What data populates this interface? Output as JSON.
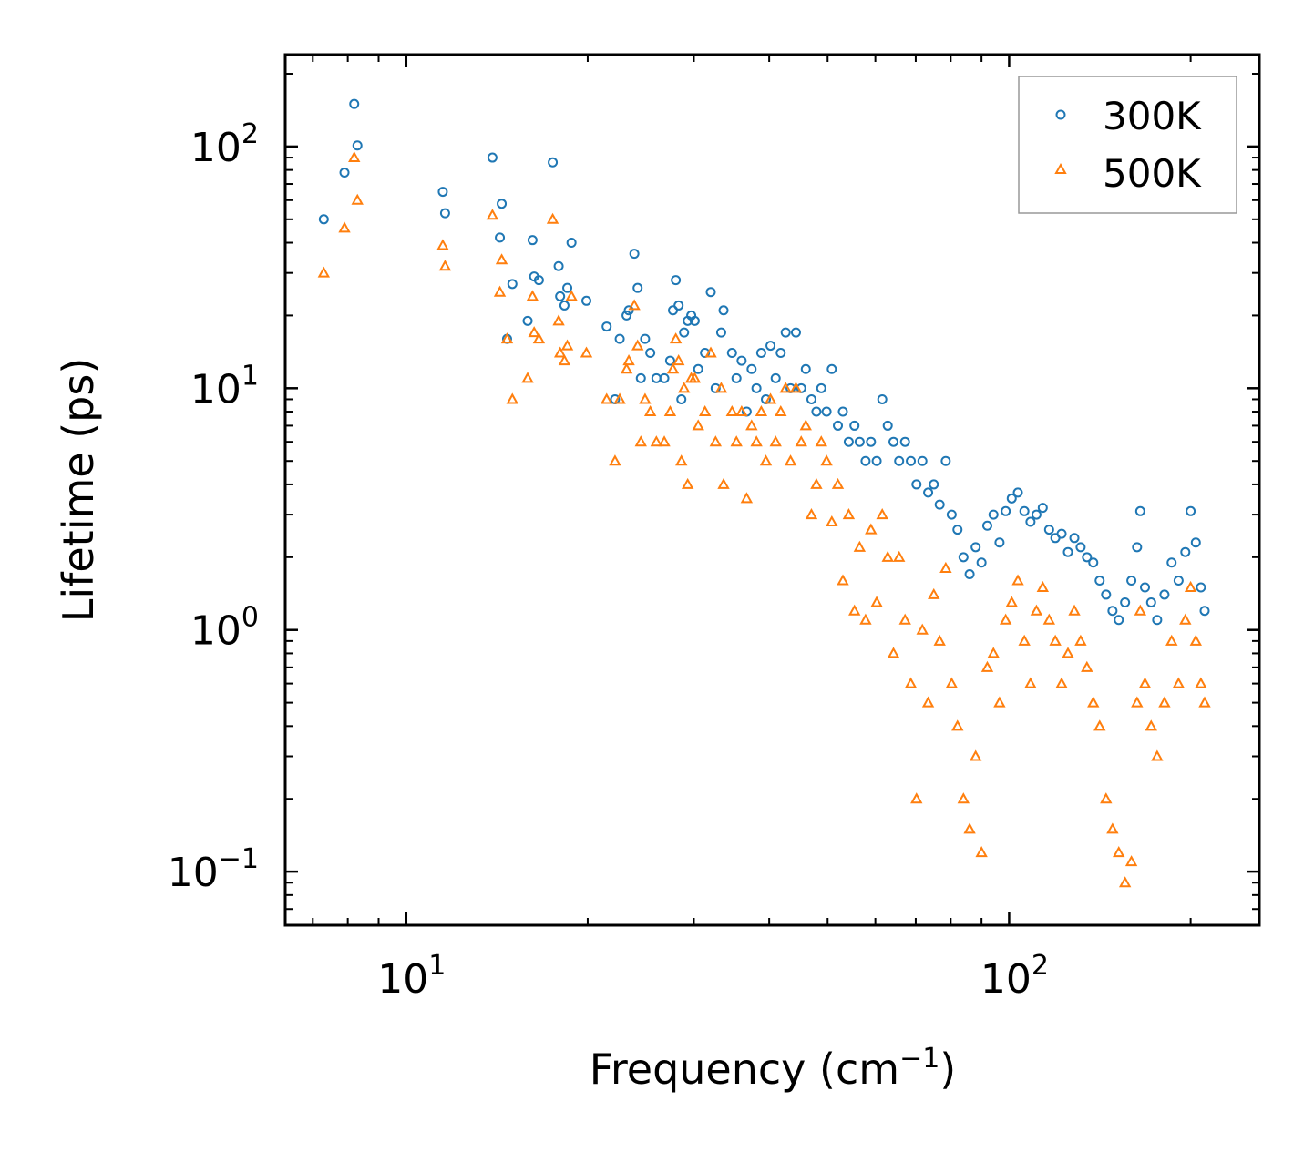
{
  "chart_data": {
    "type": "scatter",
    "title": "",
    "xlabel": "Frequency (cm",
    "xlabel_sup": "−1",
    "xlabel_end": ")",
    "ylabel": "Lifetime (ps)",
    "xscale": "log",
    "yscale": "log",
    "xlim": [
      6.3,
      260
    ],
    "ylim": [
      0.06,
      240
    ],
    "grid": false,
    "legend_position": "top-right",
    "x_ticks": [
      {
        "value": 10,
        "base": "10",
        "exp": "1"
      },
      {
        "value": 100,
        "base": "10",
        "exp": "2"
      }
    ],
    "y_ticks": [
      {
        "value": 0.1,
        "base": "10",
        "exp": "−1"
      },
      {
        "value": 1,
        "base": "10",
        "exp": "0"
      },
      {
        "value": 10,
        "base": "10",
        "exp": "1"
      },
      {
        "value": 100,
        "base": "10",
        "exp": "2"
      }
    ],
    "series": [
      {
        "name": "300K",
        "marker": "circle",
        "color": "#1f77b4",
        "points": [
          [
            7.3,
            50
          ],
          [
            7.9,
            78
          ],
          [
            8.2,
            150
          ],
          [
            8.3,
            101
          ],
          [
            11.5,
            65
          ],
          [
            11.6,
            53
          ],
          [
            13.9,
            90
          ],
          [
            14.3,
            42
          ],
          [
            14.4,
            58
          ],
          [
            14.7,
            16
          ],
          [
            15,
            27
          ],
          [
            15.9,
            19
          ],
          [
            16.2,
            41
          ],
          [
            16.3,
            29
          ],
          [
            16.6,
            28
          ],
          [
            17.5,
            86
          ],
          [
            17.9,
            32
          ],
          [
            18,
            24
          ],
          [
            18.3,
            22
          ],
          [
            18.5,
            26
          ],
          [
            18.8,
            40
          ],
          [
            19.9,
            23
          ],
          [
            21.5,
            18
          ],
          [
            22.2,
            9
          ],
          [
            22.6,
            16
          ],
          [
            23.2,
            20
          ],
          [
            23.4,
            21
          ],
          [
            23.9,
            36
          ],
          [
            24.2,
            26
          ],
          [
            24.5,
            11
          ],
          [
            24.9,
            16
          ],
          [
            25.4,
            14
          ],
          [
            26,
            11
          ],
          [
            26.8,
            11
          ],
          [
            27.4,
            13
          ],
          [
            27.7,
            21
          ],
          [
            28,
            28
          ],
          [
            28.3,
            22
          ],
          [
            28.6,
            9
          ],
          [
            28.9,
            17
          ],
          [
            29.3,
            19
          ],
          [
            29.7,
            20
          ],
          [
            30.1,
            19
          ],
          [
            30.5,
            12
          ],
          [
            31.3,
            14
          ],
          [
            32,
            25
          ],
          [
            32.6,
            10
          ],
          [
            33.3,
            17
          ],
          [
            33.6,
            21
          ],
          [
            34.7,
            14
          ],
          [
            35.3,
            11
          ],
          [
            36,
            13
          ],
          [
            36.7,
            8
          ],
          [
            37.4,
            12
          ],
          [
            38.1,
            10
          ],
          [
            38.8,
            14
          ],
          [
            39.5,
            9
          ],
          [
            40.2,
            15
          ],
          [
            41,
            11
          ],
          [
            41.8,
            14
          ],
          [
            42.6,
            17
          ],
          [
            43.4,
            10
          ],
          [
            44.3,
            17
          ],
          [
            45.2,
            10
          ],
          [
            46,
            12
          ],
          [
            47,
            9
          ],
          [
            47.9,
            8
          ],
          [
            48.8,
            10
          ],
          [
            49.8,
            8
          ],
          [
            50.8,
            12
          ],
          [
            52,
            7
          ],
          [
            53,
            8
          ],
          [
            54.2,
            6
          ],
          [
            55.4,
            7
          ],
          [
            56.5,
            6
          ],
          [
            57.8,
            5
          ],
          [
            59,
            6
          ],
          [
            60.3,
            5
          ],
          [
            61.6,
            9
          ],
          [
            62.9,
            7
          ],
          [
            64.3,
            6
          ],
          [
            65.7,
            5
          ],
          [
            67.2,
            6
          ],
          [
            68.7,
            5
          ],
          [
            70.2,
            4
          ],
          [
            71.8,
            5
          ],
          [
            73.4,
            3.7
          ],
          [
            75,
            4
          ],
          [
            76.7,
            3.3
          ],
          [
            78.5,
            5
          ],
          [
            80.3,
            3
          ],
          [
            82.1,
            2.6
          ],
          [
            84,
            2
          ],
          [
            86,
            1.7
          ],
          [
            88,
            2.2
          ],
          [
            90,
            1.9
          ],
          [
            92,
            2.7
          ],
          [
            94.2,
            3
          ],
          [
            96.4,
            2.3
          ],
          [
            98.7,
            3.1
          ],
          [
            101,
            3.5
          ],
          [
            103.4,
            3.7
          ],
          [
            106,
            3.1
          ],
          [
            108.5,
            2.8
          ],
          [
            111,
            3
          ],
          [
            113.7,
            3.2
          ],
          [
            116.5,
            2.6
          ],
          [
            119.3,
            2.4
          ],
          [
            122.2,
            2.5
          ],
          [
            125.2,
            2.1
          ],
          [
            128.3,
            2.4
          ],
          [
            131.4,
            2.2
          ],
          [
            134.6,
            2
          ],
          [
            137.9,
            1.9
          ],
          [
            141.3,
            1.6
          ],
          [
            144.8,
            1.4
          ],
          [
            148.4,
            1.2
          ],
          [
            152,
            1.1
          ],
          [
            155.7,
            1.3
          ],
          [
            159.5,
            1.6
          ],
          [
            163,
            2.2
          ],
          [
            165,
            3.1
          ],
          [
            168,
            1.5
          ],
          [
            172,
            1.3
          ],
          [
            176,
            1.1
          ],
          [
            181,
            1.4
          ],
          [
            186,
            1.9
          ],
          [
            191,
            1.6
          ],
          [
            196,
            2.1
          ],
          [
            200,
            3.1
          ],
          [
            204,
            2.3
          ],
          [
            208,
            1.5
          ],
          [
            211,
            1.2
          ]
        ]
      },
      {
        "name": "500K",
        "marker": "triangle",
        "color": "#ff7f0e",
        "points": [
          [
            7.3,
            30
          ],
          [
            7.9,
            46
          ],
          [
            8.2,
            90
          ],
          [
            8.3,
            60
          ],
          [
            11.5,
            39
          ],
          [
            11.6,
            32
          ],
          [
            13.9,
            52
          ],
          [
            14.3,
            25
          ],
          [
            14.4,
            34
          ],
          [
            14.7,
            16
          ],
          [
            15,
            9
          ],
          [
            15.9,
            11
          ],
          [
            16.2,
            24
          ],
          [
            16.3,
            17
          ],
          [
            16.6,
            16
          ],
          [
            17.5,
            50
          ],
          [
            17.9,
            19
          ],
          [
            18,
            14
          ],
          [
            18.3,
            13
          ],
          [
            18.5,
            15
          ],
          [
            18.8,
            24
          ],
          [
            19.9,
            14
          ],
          [
            21.5,
            9
          ],
          [
            22.2,
            5
          ],
          [
            22.6,
            9
          ],
          [
            23.2,
            12
          ],
          [
            23.4,
            13
          ],
          [
            23.9,
            22
          ],
          [
            24.2,
            15
          ],
          [
            24.5,
            6
          ],
          [
            24.9,
            9
          ],
          [
            25.4,
            8
          ],
          [
            26,
            6
          ],
          [
            26.8,
            6
          ],
          [
            27.4,
            8
          ],
          [
            27.7,
            12
          ],
          [
            28,
            16
          ],
          [
            28.3,
            13
          ],
          [
            28.6,
            5
          ],
          [
            28.9,
            10
          ],
          [
            29.3,
            4
          ],
          [
            29.7,
            11
          ],
          [
            30.1,
            11
          ],
          [
            30.5,
            7
          ],
          [
            31.3,
            8
          ],
          [
            32,
            14
          ],
          [
            32.6,
            6
          ],
          [
            33.3,
            10
          ],
          [
            33.6,
            4
          ],
          [
            34.7,
            8
          ],
          [
            35.3,
            6
          ],
          [
            36,
            8
          ],
          [
            36.7,
            3.5
          ],
          [
            37.4,
            7
          ],
          [
            38.1,
            6
          ],
          [
            38.8,
            8
          ],
          [
            39.5,
            5
          ],
          [
            40.2,
            9
          ],
          [
            41,
            6
          ],
          [
            41.8,
            8
          ],
          [
            42.6,
            10
          ],
          [
            43.4,
            5
          ],
          [
            44.3,
            10
          ],
          [
            45.2,
            6
          ],
          [
            46,
            7
          ],
          [
            47,
            3
          ],
          [
            47.9,
            4
          ],
          [
            48.8,
            6
          ],
          [
            49.8,
            5
          ],
          [
            50.8,
            2.8
          ],
          [
            52,
            4
          ],
          [
            53,
            1.6
          ],
          [
            54.2,
            3
          ],
          [
            55.4,
            1.2
          ],
          [
            56.5,
            2.2
          ],
          [
            57.8,
            1.1
          ],
          [
            59,
            2.6
          ],
          [
            60.3,
            1.3
          ],
          [
            61.6,
            3
          ],
          [
            62.9,
            2
          ],
          [
            64.3,
            0.8
          ],
          [
            65.7,
            2
          ],
          [
            67.2,
            1.1
          ],
          [
            68.7,
            0.6
          ],
          [
            70.2,
            0.2
          ],
          [
            71.8,
            1
          ],
          [
            73.4,
            0.5
          ],
          [
            75,
            1.4
          ],
          [
            76.7,
            0.9
          ],
          [
            78.5,
            1.8
          ],
          [
            80.3,
            0.6
          ],
          [
            82.1,
            0.4
          ],
          [
            84,
            0.2
          ],
          [
            86,
            0.15
          ],
          [
            88,
            0.3
          ],
          [
            90,
            0.12
          ],
          [
            92,
            0.7
          ],
          [
            94.2,
            0.8
          ],
          [
            96.4,
            0.5
          ],
          [
            98.7,
            1.1
          ],
          [
            101,
            1.3
          ],
          [
            103.4,
            1.6
          ],
          [
            106,
            0.9
          ],
          [
            108.5,
            0.6
          ],
          [
            111,
            1.2
          ],
          [
            113.7,
            1.5
          ],
          [
            116.5,
            1.1
          ],
          [
            119.3,
            0.9
          ],
          [
            122.2,
            0.6
          ],
          [
            125.2,
            0.8
          ],
          [
            128.3,
            1.2
          ],
          [
            131.4,
            0.9
          ],
          [
            134.6,
            0.7
          ],
          [
            137.9,
            0.5
          ],
          [
            141.3,
            0.4
          ],
          [
            144.8,
            0.2
          ],
          [
            148.4,
            0.15
          ],
          [
            152,
            0.12
          ],
          [
            155.7,
            0.09
          ],
          [
            159.5,
            0.11
          ],
          [
            163,
            0.5
          ],
          [
            165,
            1.2
          ],
          [
            168,
            0.6
          ],
          [
            172,
            0.4
          ],
          [
            176,
            0.3
          ],
          [
            181,
            0.5
          ],
          [
            186,
            0.9
          ],
          [
            191,
            0.6
          ],
          [
            196,
            1.1
          ],
          [
            200,
            1.5
          ],
          [
            204,
            0.9
          ],
          [
            208,
            0.6
          ],
          [
            211,
            0.5
          ]
        ]
      }
    ]
  }
}
